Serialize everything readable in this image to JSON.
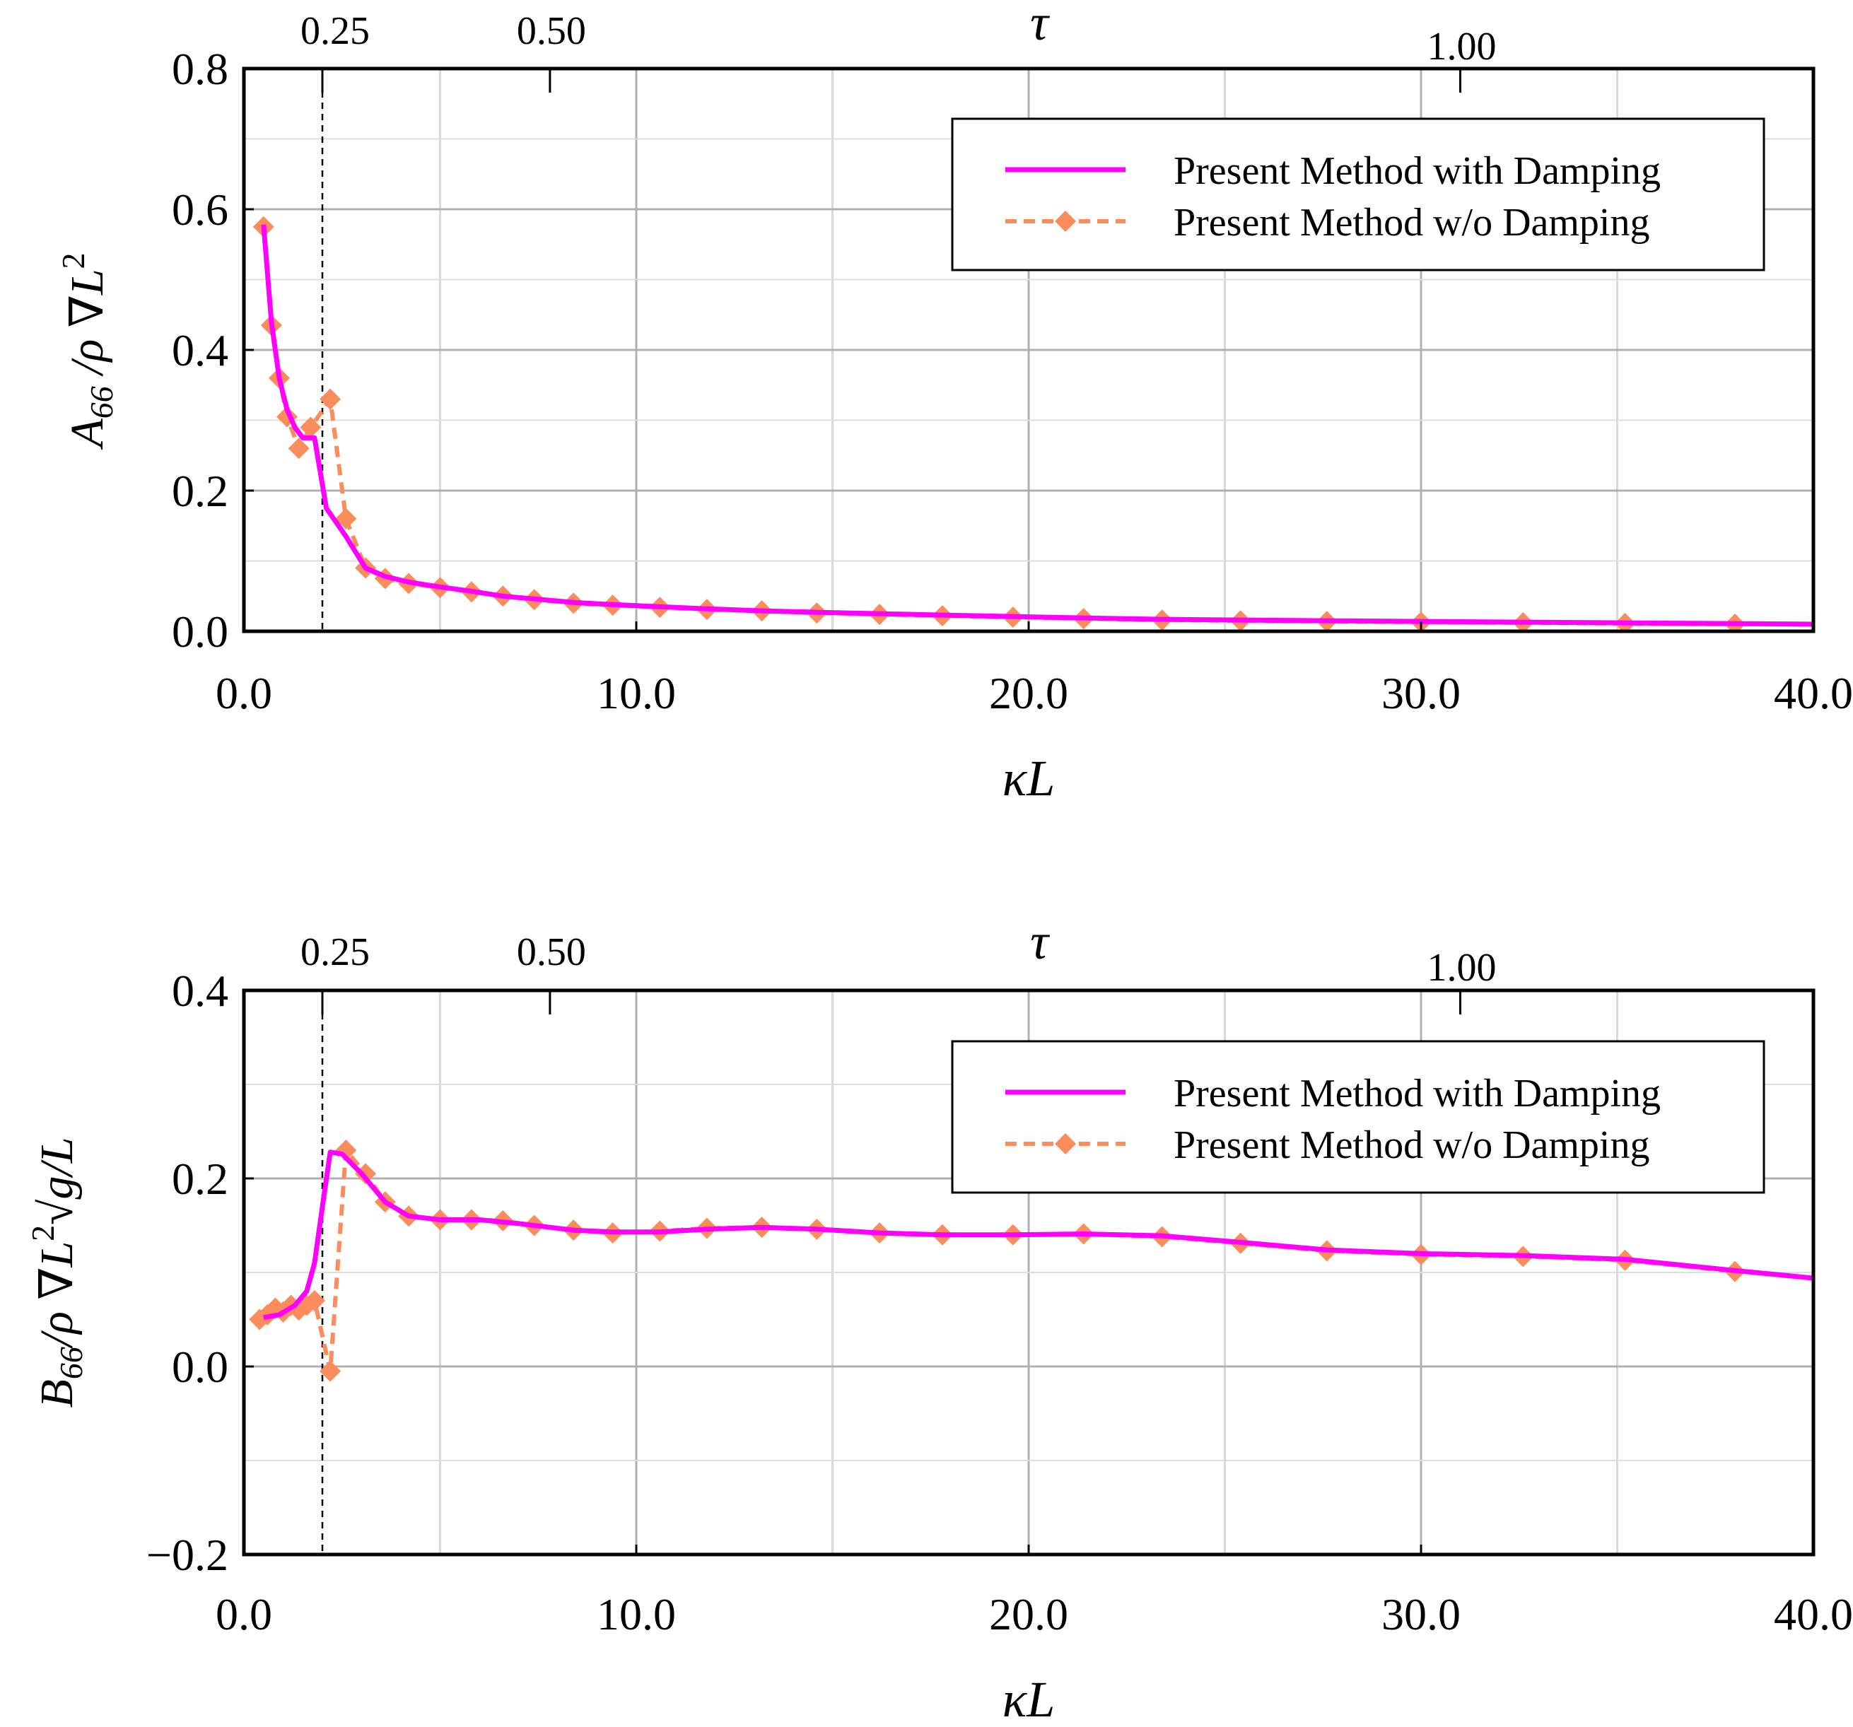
{
  "colors": {
    "with_damping": "#ff00ff",
    "without_damping": "#fb8c5c",
    "grid": "#b4b4b4",
    "axes": "#000000"
  },
  "chart_data": [
    {
      "type": "line",
      "id": "A66",
      "xlabel": "κL",
      "ylabel": {
        "prefix": "A",
        "sub": "66",
        "mid": " /ρ ∇L",
        "sup": "2"
      },
      "top_axis": {
        "label": "τ",
        "ticks": [
          {
            "tau": "0.25",
            "x": 2.0
          },
          {
            "tau": "0.50",
            "x": 7.8
          },
          {
            "tau": "1.00",
            "x": 31.0
          }
        ]
      },
      "xlim": [
        0,
        40
      ],
      "ylim": [
        0.0,
        0.8
      ],
      "xticks": [
        0,
        10,
        20,
        30,
        40
      ],
      "xtick_labels": [
        "0.0",
        "10.0",
        "20.0",
        "30.0",
        "40.0"
      ],
      "yticks": [
        0.0,
        0.2,
        0.4,
        0.6,
        0.8
      ],
      "ytick_labels": [
        "0.0",
        "0.2",
        "0.4",
        "0.6",
        "0.8"
      ],
      "vline_x": 2.0,
      "grid": true,
      "legend_position": "top-right",
      "series": [
        {
          "name": "Present Method with Damping",
          "style": "solid",
          "x": [
            0.5,
            0.7,
            0.9,
            1.1,
            1.3,
            1.5,
            1.8,
            2.1,
            2.6,
            3.1,
            3.6,
            4.2,
            5.0,
            5.8,
            6.6,
            7.4,
            8.4,
            9.4,
            10.6,
            11.8,
            13.2,
            14.6,
            16.2,
            17.8,
            19.6,
            21.4,
            23.4,
            25.4,
            27.6,
            30.0,
            32.6,
            35.2,
            38.0,
            40.0
          ],
          "y": [
            0.578,
            0.44,
            0.36,
            0.315,
            0.29,
            0.275,
            0.275,
            0.175,
            0.135,
            0.09,
            0.078,
            0.07,
            0.063,
            0.057,
            0.05,
            0.046,
            0.041,
            0.038,
            0.035,
            0.032,
            0.029,
            0.027,
            0.025,
            0.023,
            0.021,
            0.019,
            0.017,
            0.016,
            0.015,
            0.014,
            0.013,
            0.012,
            0.011,
            0.01
          ]
        },
        {
          "name": "Present Method w/o Damping",
          "style": "dashed-diamond",
          "x": [
            0.5,
            0.7,
            0.9,
            1.1,
            1.4,
            1.7,
            2.2,
            2.6,
            3.1,
            3.6,
            4.2,
            5.0,
            5.8,
            6.6,
            7.4,
            8.4,
            9.4,
            10.6,
            11.8,
            13.2,
            14.6,
            16.2,
            17.8,
            19.6,
            21.4,
            23.4,
            25.4,
            27.6,
            30.0,
            32.6,
            35.2,
            38.0
          ],
          "y": [
            0.575,
            0.435,
            0.36,
            0.305,
            0.26,
            0.29,
            0.33,
            0.16,
            0.09,
            0.075,
            0.068,
            0.062,
            0.056,
            0.05,
            0.045,
            0.04,
            0.037,
            0.034,
            0.031,
            0.029,
            0.026,
            0.024,
            0.022,
            0.02,
            0.018,
            0.016,
            0.015,
            0.014,
            0.013,
            0.012,
            0.011,
            0.01
          ]
        }
      ]
    },
    {
      "type": "line",
      "id": "B66",
      "xlabel": "κL",
      "ylabel": {
        "prefix": "B",
        "sub": "66",
        "mid": "/ρ ∇L",
        "sup": "2",
        "tail": "√g/L"
      },
      "top_axis": {
        "label": "τ",
        "ticks": [
          {
            "tau": "0.25",
            "x": 2.0
          },
          {
            "tau": "0.50",
            "x": 7.8
          },
          {
            "tau": "1.00",
            "x": 31.0
          }
        ]
      },
      "xlim": [
        0,
        40
      ],
      "ylim": [
        -0.2,
        0.4
      ],
      "xticks": [
        0,
        10,
        20,
        30,
        40
      ],
      "xtick_labels": [
        "0.0",
        "10.0",
        "20.0",
        "30.0",
        "40.0"
      ],
      "yticks": [
        -0.2,
        0.0,
        0.2,
        0.4
      ],
      "ytick_labels": [
        "−0.2",
        "0.0",
        "0.2",
        "0.4"
      ],
      "vline_x": 2.0,
      "grid": true,
      "legend_position": "top-right",
      "series": [
        {
          "name": "Present Method with Damping",
          "style": "solid",
          "x": [
            0.5,
            0.9,
            1.3,
            1.6,
            1.8,
            2.0,
            2.2,
            2.5,
            3.0,
            3.6,
            4.2,
            5.0,
            6.0,
            7.0,
            8.4,
            9.4,
            10.6,
            11.8,
            13.2,
            14.6,
            16.2,
            17.8,
            19.6,
            21.4,
            23.4,
            25.4,
            27.6,
            30.0,
            32.6,
            35.2,
            38.0,
            40.0
          ],
          "y": [
            0.052,
            0.055,
            0.065,
            0.08,
            0.11,
            0.17,
            0.228,
            0.226,
            0.205,
            0.175,
            0.16,
            0.156,
            0.156,
            0.152,
            0.145,
            0.143,
            0.143,
            0.146,
            0.148,
            0.146,
            0.142,
            0.14,
            0.14,
            0.141,
            0.139,
            0.132,
            0.124,
            0.12,
            0.118,
            0.114,
            0.102,
            0.094
          ]
        },
        {
          "name": "Present Method w/o Damping",
          "style": "dashed-diamond",
          "x": [
            0.4,
            0.6,
            0.8,
            1.0,
            1.2,
            1.4,
            1.6,
            1.8,
            2.2,
            2.6,
            3.1,
            3.6,
            4.2,
            5.0,
            5.8,
            6.6,
            7.4,
            8.4,
            9.4,
            10.6,
            11.8,
            13.2,
            14.6,
            16.2,
            17.8,
            19.6,
            21.4,
            23.4,
            25.4,
            27.6,
            30.0,
            32.6,
            35.2,
            38.0
          ],
          "y": [
            0.05,
            0.055,
            0.062,
            0.058,
            0.065,
            0.06,
            0.065,
            0.07,
            -0.005,
            0.23,
            0.205,
            0.175,
            0.16,
            0.156,
            0.156,
            0.155,
            0.15,
            0.145,
            0.142,
            0.144,
            0.147,
            0.148,
            0.146,
            0.142,
            0.14,
            0.14,
            0.141,
            0.138,
            0.131,
            0.123,
            0.119,
            0.117,
            0.113,
            0.101
          ]
        }
      ]
    }
  ]
}
